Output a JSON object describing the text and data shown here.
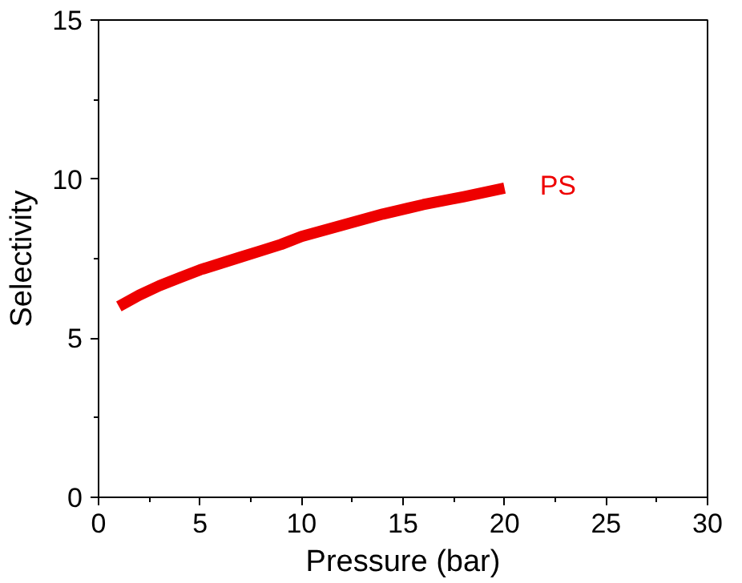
{
  "chart_data": {
    "type": "line",
    "xlabel": "Pressure (bar)",
    "ylabel": "Selectivity",
    "xlim": [
      0,
      30
    ],
    "ylim": [
      0,
      15
    ],
    "xticks": [
      0,
      5,
      10,
      15,
      20,
      25,
      30
    ],
    "yticks": [
      0,
      5,
      10,
      15
    ],
    "grid": false,
    "series": [
      {
        "name": "PS",
        "color": "#ee0000",
        "x": [
          1,
          2,
          3,
          4,
          5,
          6,
          7,
          8,
          9,
          10,
          12,
          14,
          16,
          18,
          20
        ],
        "values": [
          6.0,
          6.35,
          6.65,
          6.9,
          7.15,
          7.35,
          7.55,
          7.75,
          7.95,
          8.2,
          8.55,
          8.9,
          9.2,
          9.45,
          9.72
        ]
      }
    ]
  }
}
